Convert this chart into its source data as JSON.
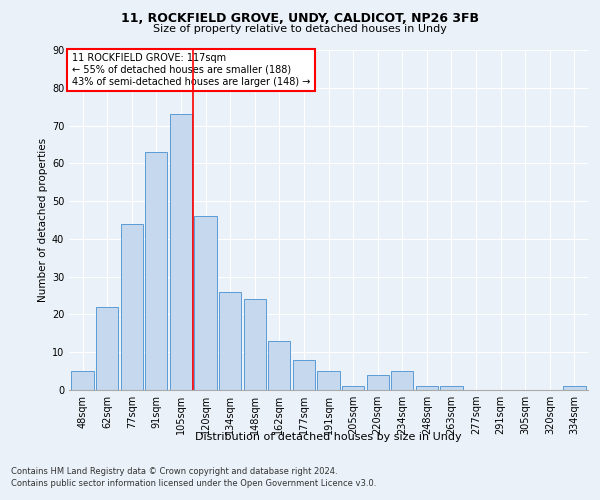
{
  "title1": "11, ROCKFIELD GROVE, UNDY, CALDICOT, NP26 3FB",
  "title2": "Size of property relative to detached houses in Undy",
  "xlabel": "Distribution of detached houses by size in Undy",
  "ylabel": "Number of detached properties",
  "categories": [
    "48sqm",
    "62sqm",
    "77sqm",
    "91sqm",
    "105sqm",
    "120sqm",
    "134sqm",
    "148sqm",
    "162sqm",
    "177sqm",
    "191sqm",
    "205sqm",
    "220sqm",
    "234sqm",
    "248sqm",
    "263sqm",
    "277sqm",
    "291sqm",
    "305sqm",
    "320sqm",
    "334sqm"
  ],
  "values": [
    5,
    22,
    44,
    63,
    73,
    46,
    26,
    24,
    13,
    8,
    5,
    1,
    4,
    5,
    1,
    1,
    0,
    0,
    0,
    0,
    1
  ],
  "bar_color": "#c5d8ed",
  "bar_edge_color": "#5b9bd5",
  "vline_x_idx": 4.5,
  "vline_color": "red",
  "annotation_title": "11 ROCKFIELD GROVE: 117sqm",
  "annotation_line2": "← 55% of detached houses are smaller (188)",
  "annotation_line3": "43% of semi-detached houses are larger (148) →",
  "annotation_box_color": "white",
  "annotation_box_edge_color": "red",
  "ylim": [
    0,
    90
  ],
  "yticks": [
    0,
    10,
    20,
    30,
    40,
    50,
    60,
    70,
    80,
    90
  ],
  "footer1": "Contains HM Land Registry data © Crown copyright and database right 2024.",
  "footer2": "Contains public sector information licensed under the Open Government Licence v3.0.",
  "bg_color": "#eaf1f8",
  "plot_bg_color": "#eaf1f8",
  "grid_color": "white",
  "title1_fontsize": 9,
  "title2_fontsize": 8,
  "xlabel_fontsize": 8,
  "ylabel_fontsize": 7.5,
  "tick_fontsize": 7,
  "annotation_fontsize": 7,
  "footer_fontsize": 6
}
